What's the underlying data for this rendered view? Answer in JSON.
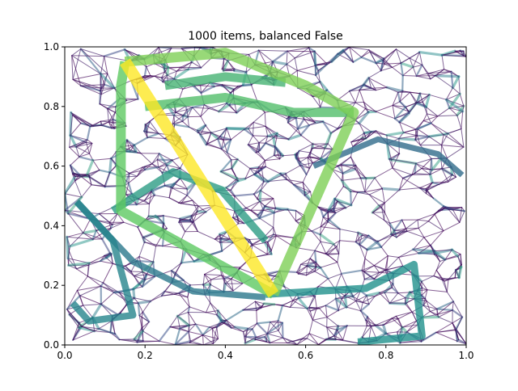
{
  "chart_data": {
    "type": "network",
    "title": "1000 items, balanced False",
    "xlabel": "",
    "ylabel": "",
    "xlim": [
      0,
      1
    ],
    "ylim": [
      0,
      1
    ],
    "x_ticks": [
      "0.0",
      "0.2",
      "0.4",
      "0.6",
      "0.8",
      "1.0"
    ],
    "y_ticks": [
      "0.0",
      "0.2",
      "0.4",
      "0.6",
      "0.8",
      "1.0"
    ],
    "grid": false,
    "node_count": 1000,
    "colormap": [
      "#440154",
      "#3b528b",
      "#21918c",
      "#5ec962",
      "#fde725"
    ],
    "highlight_paths": [
      {
        "level": 1.0,
        "points": [
          [
            0.15,
            0.95
          ],
          [
            0.52,
            0.17
          ]
        ]
      },
      {
        "level": 0.8,
        "points": [
          [
            0.15,
            0.95
          ],
          [
            0.4,
            0.98
          ],
          [
            0.6,
            0.87
          ],
          [
            0.72,
            0.78
          ],
          [
            0.52,
            0.17
          ]
        ]
      },
      {
        "level": 0.75,
        "points": [
          [
            0.52,
            0.17
          ],
          [
            0.14,
            0.45
          ],
          [
            0.14,
            0.87
          ],
          [
            0.15,
            0.95
          ]
        ]
      },
      {
        "level": 0.7,
        "points": [
          [
            0.2,
            0.8
          ],
          [
            0.4,
            0.83
          ],
          [
            0.57,
            0.78
          ],
          [
            0.72,
            0.78
          ]
        ]
      },
      {
        "level": 0.65,
        "points": [
          [
            0.25,
            0.87
          ],
          [
            0.4,
            0.9
          ],
          [
            0.55,
            0.88
          ]
        ]
      },
      {
        "level": 0.55,
        "points": [
          [
            0.12,
            0.45
          ],
          [
            0.27,
            0.58
          ],
          [
            0.39,
            0.52
          ],
          [
            0.5,
            0.35
          ]
        ]
      },
      {
        "level": 0.5,
        "points": [
          [
            0.5,
            0.17
          ],
          [
            0.75,
            0.19
          ],
          [
            0.87,
            0.27
          ],
          [
            0.89,
            0.03
          ],
          [
            0.73,
            0.01
          ]
        ]
      },
      {
        "level": 0.45,
        "points": [
          [
            0.03,
            0.48
          ],
          [
            0.12,
            0.35
          ],
          [
            0.17,
            0.1
          ],
          [
            0.06,
            0.08
          ],
          [
            0.02,
            0.14
          ]
        ]
      },
      {
        "level": 0.4,
        "points": [
          [
            0.03,
            0.48
          ],
          [
            0.17,
            0.28
          ],
          [
            0.32,
            0.18
          ],
          [
            0.5,
            0.16
          ]
        ]
      },
      {
        "level": 0.35,
        "points": [
          [
            0.62,
            0.6
          ],
          [
            0.78,
            0.69
          ],
          [
            0.93,
            0.64
          ],
          [
            0.99,
            0.57
          ]
        ]
      }
    ]
  }
}
